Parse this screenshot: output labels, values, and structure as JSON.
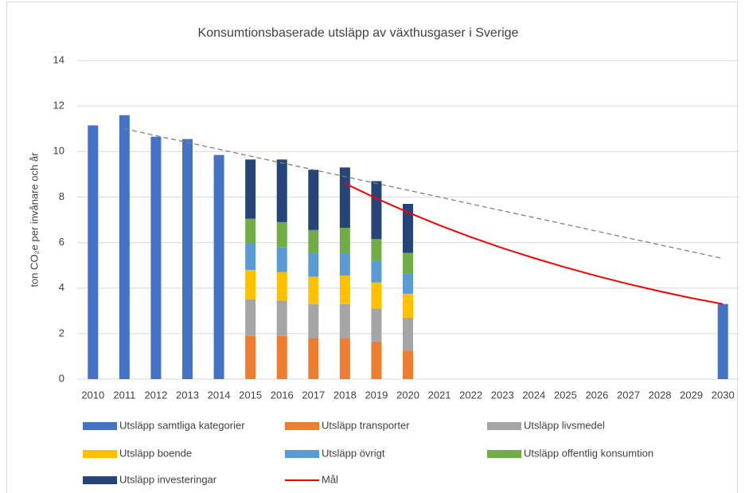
{
  "chart_data": {
    "type": "bar",
    "stacked": true,
    "title": "Konsumtionsbaserade utsläpp av växthusgaser i Sverige",
    "ylabel": "ton CO₂e per invånare och år",
    "categories": [
      "2010",
      "2011",
      "2012",
      "2013",
      "2014",
      "2015",
      "2016",
      "2017",
      "2018",
      "2019",
      "2020",
      "2021",
      "2022",
      "2023",
      "2024",
      "2025",
      "2026",
      "2027",
      "2028",
      "2029",
      "2030"
    ],
    "ylim": [
      0,
      14
    ],
    "yticks": [
      0,
      2,
      4,
      6,
      8,
      10,
      12,
      14
    ],
    "grid": true,
    "legend": "bottom",
    "series": [
      {
        "name": "Utsläpp samtliga kategorier",
        "type": "bar",
        "color": "#4472c4",
        "values": [
          11.15,
          11.6,
          10.65,
          10.55,
          9.85,
          null,
          null,
          null,
          null,
          null,
          null,
          null,
          null,
          null,
          null,
          null,
          null,
          null,
          null,
          null,
          3.3
        ]
      },
      {
        "name": "Utsläpp transporter",
        "type": "bar",
        "color": "#ed7d31",
        "values": [
          null,
          null,
          null,
          null,
          null,
          1.9,
          1.9,
          1.8,
          1.8,
          1.65,
          1.25,
          null,
          null,
          null,
          null,
          null,
          null,
          null,
          null,
          null,
          null
        ]
      },
      {
        "name": "Utsläpp livsmedel",
        "type": "bar",
        "color": "#a5a5a5",
        "values": [
          null,
          null,
          null,
          null,
          null,
          1.6,
          1.55,
          1.5,
          1.5,
          1.45,
          1.45,
          null,
          null,
          null,
          null,
          null,
          null,
          null,
          null,
          null,
          null
        ]
      },
      {
        "name": "Utsläpp boende",
        "type": "bar",
        "color": "#ffc000",
        "values": [
          null,
          null,
          null,
          null,
          null,
          1.3,
          1.25,
          1.2,
          1.25,
          1.15,
          1.05,
          null,
          null,
          null,
          null,
          null,
          null,
          null,
          null,
          null,
          null
        ]
      },
      {
        "name": "Utsläpp övrigt",
        "type": "bar",
        "color": "#5b9bd5",
        "values": [
          null,
          null,
          null,
          null,
          null,
          1.15,
          1.1,
          1.05,
          1.0,
          0.95,
          0.9,
          null,
          null,
          null,
          null,
          null,
          null,
          null,
          null,
          null,
          null
        ]
      },
      {
        "name": "Utsläpp offentlig konsumtion",
        "type": "bar",
        "color": "#70ad47",
        "values": [
          null,
          null,
          null,
          null,
          null,
          1.1,
          1.1,
          1.0,
          1.1,
          0.95,
          0.9,
          null,
          null,
          null,
          null,
          null,
          null,
          null,
          null,
          null,
          null
        ]
      },
      {
        "name": "Utsläpp investeringar",
        "type": "bar",
        "color": "#264478",
        "values": [
          null,
          null,
          null,
          null,
          null,
          2.6,
          2.75,
          2.65,
          2.65,
          2.55,
          2.15,
          null,
          null,
          null,
          null,
          null,
          null,
          null,
          null,
          null,
          null
        ]
      },
      {
        "name": "Mål",
        "type": "line",
        "color": "#ff0000",
        "values": [
          null,
          null,
          null,
          null,
          null,
          null,
          null,
          null,
          8.6,
          7.94,
          7.33,
          6.76,
          6.24,
          5.76,
          5.32,
          4.91,
          4.53,
          4.18,
          3.86,
          3.56,
          3.3
        ]
      },
      {
        "type": "line",
        "color": "#808080",
        "dashed": true,
        "values": [
          null,
          11.0,
          10.7,
          10.4,
          10.1,
          9.8,
          9.5,
          9.2,
          8.9,
          8.6,
          8.3,
          8.0,
          7.7,
          7.4,
          7.1,
          6.8,
          6.5,
          6.2,
          5.9,
          5.6,
          5.3
        ]
      }
    ]
  }
}
